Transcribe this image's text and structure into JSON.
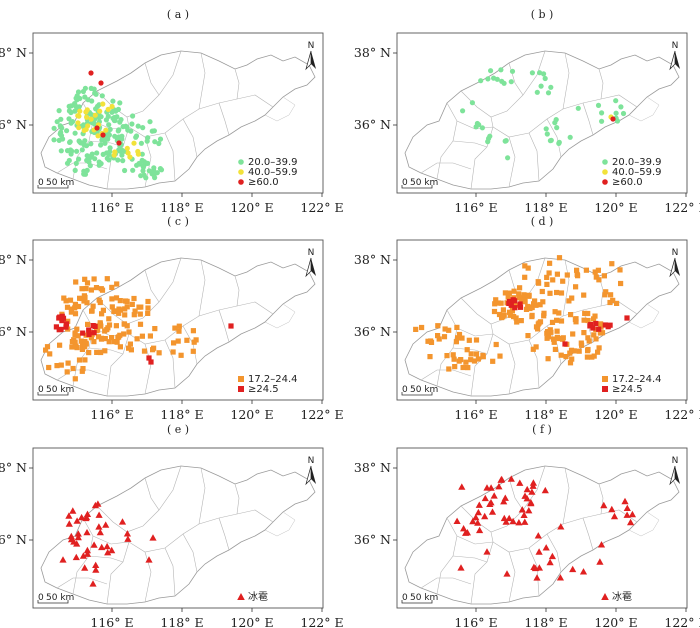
{
  "lat_labels": [
    "38° N",
    "36° N"
  ],
  "lon_labels": [
    "116° E",
    "118° E",
    "120° E",
    "122° E"
  ],
  "north_label": "N",
  "scale": {
    "zero": "0",
    "label": "50 km"
  },
  "colors": {
    "green": "#7ee39a",
    "yellow": "#f2e23a",
    "red": "#e02020",
    "orange": "#f3952e",
    "border": "#9a9a9a",
    "frame": "#555555"
  },
  "panels": [
    {
      "label": "( a )",
      "legend": [
        {
          "shape": "circle",
          "color": "#7ee39a",
          "text": "20.0–39.9"
        },
        {
          "shape": "circle",
          "color": "#f2e23a",
          "text": "40.0–59.9"
        },
        {
          "shape": "circle",
          "color": "#e02020",
          "text": "≥60.0"
        }
      ]
    },
    {
      "label": "( b )",
      "legend": [
        {
          "shape": "circle",
          "color": "#7ee39a",
          "text": "20.0–39.9"
        },
        {
          "shape": "circle",
          "color": "#f2e23a",
          "text": "40.0–59.9"
        },
        {
          "shape": "circle",
          "color": "#e02020",
          "text": "≥60.0"
        }
      ]
    },
    {
      "label": "( c )",
      "legend": [
        {
          "shape": "square",
          "color": "#f3952e",
          "text": "17.2–24.4"
        },
        {
          "shape": "square",
          "color": "#e02020",
          "text": "≥24.5"
        }
      ]
    },
    {
      "label": "( d )",
      "legend": [
        {
          "shape": "square",
          "color": "#f3952e",
          "text": "17.2–24.4"
        },
        {
          "shape": "square",
          "color": "#e02020",
          "text": "≥24.5"
        }
      ]
    },
    {
      "label": "( e )",
      "legend": [
        {
          "shape": "triangle",
          "color": "#e02020",
          "text": "冰雹"
        }
      ]
    },
    {
      "label": "( f )",
      "legend": [
        {
          "shape": "triangle",
          "color": "#e02020",
          "text": "冰雹"
        }
      ]
    }
  ]
}
